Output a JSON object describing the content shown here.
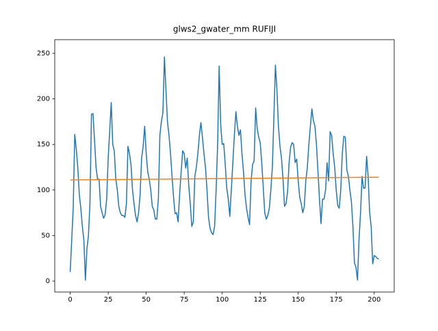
{
  "chart_data": {
    "type": "line",
    "title": "glws2_gwater_mm RUFIJI",
    "x": [
      0,
      1,
      2,
      3,
      4,
      5,
      6,
      7,
      8,
      9,
      10,
      11,
      12,
      13,
      14,
      15,
      16,
      17,
      18,
      19,
      20,
      21,
      22,
      23,
      24,
      25,
      26,
      27,
      28,
      29,
      30,
      31,
      32,
      33,
      34,
      35,
      36,
      37,
      38,
      39,
      40,
      41,
      42,
      43,
      44,
      45,
      46,
      47,
      48,
      49,
      50,
      51,
      52,
      53,
      54,
      55,
      56,
      57,
      58,
      59,
      60,
      61,
      62,
      63,
      64,
      65,
      66,
      67,
      68,
      69,
      70,
      71,
      72,
      73,
      74,
      75,
      76,
      77,
      78,
      79,
      80,
      81,
      82,
      83,
      84,
      85,
      86,
      87,
      88,
      89,
      90,
      91,
      92,
      93,
      94,
      95,
      96,
      97,
      98,
      99,
      100,
      101,
      102,
      103,
      104,
      105,
      106,
      107,
      108,
      109,
      110,
      111,
      112,
      113,
      114,
      115,
      116,
      117,
      118,
      119,
      120,
      121,
      122,
      123,
      124,
      125,
      126,
      127,
      128,
      129,
      130,
      131,
      132,
      133,
      134,
      135,
      136,
      137,
      138,
      139,
      140,
      141,
      142,
      143,
      144,
      145,
      146,
      147,
      148,
      149,
      150,
      151,
      152,
      153,
      154,
      155,
      156,
      157,
      158,
      159,
      160,
      161,
      162,
      163,
      164,
      165,
      166,
      167,
      168,
      169,
      170,
      171,
      172,
      173,
      174,
      175,
      176,
      177,
      178,
      179,
      180,
      181,
      182,
      183,
      184,
      185,
      186,
      187,
      188,
      189,
      190,
      191,
      192,
      193,
      194,
      195,
      196,
      197,
      198,
      199,
      200,
      201,
      202,
      203
    ],
    "series": [
      {
        "color": "#1f77b4",
        "values": [
          10,
          45,
          80,
          161,
          145,
          125,
          95,
          80,
          60,
          45,
          1,
          35,
          50,
          85,
          183,
          184,
          155,
          125,
          112,
          112,
          82,
          75,
          69,
          73,
          90,
          135,
          165,
          196,
          150,
          143,
          112,
          100,
          82,
          75,
          72,
          72,
          70,
          85,
          148,
          140,
          128,
          100,
          85,
          72,
          65,
          75,
          95,
          135,
          148,
          170,
          140,
          120,
          112,
          100,
          82,
          78,
          68,
          68,
          90,
          160,
          175,
          185,
          246,
          210,
          175,
          160,
          140,
          115,
          92,
          74,
          75,
          65,
          95,
          120,
          143,
          140,
          124,
          135,
          105,
          85,
          60,
          65,
          115,
          125,
          140,
          160,
          174,
          158,
          140,
          125,
          100,
          70,
          58,
          53,
          51,
          60,
          100,
          150,
          236,
          172,
          150,
          151,
          128,
          102,
          90,
          71,
          100,
          130,
          160,
          186,
          170,
          160,
          166,
          140,
          120,
          95,
          80,
          70,
          62,
          110,
          128,
          132,
          190,
          168,
          158,
          152,
          130,
          103,
          75,
          68,
          72,
          80,
          100,
          125,
          180,
          237,
          210,
          170,
          148,
          135,
          112,
          82,
          85,
          98,
          130,
          147,
          152,
          150,
          130,
          134,
          110,
          92,
          85,
          75,
          82,
          110,
          125,
          150,
          170,
          189,
          176,
          170,
          150,
          120,
          90,
          63,
          90,
          90,
          100,
          130,
          110,
          164,
          160,
          140,
          125,
          100,
          83,
          80,
          100,
          140,
          159,
          158,
          122,
          115,
          100,
          87,
          60,
          20,
          15,
          1,
          45,
          75,
          115,
          102,
          102,
          137,
          115,
          75,
          60,
          19,
          28,
          27,
          25,
          24
        ]
      },
      {
        "color": "#ff7f0e",
        "x": [
          0,
          203
        ],
        "values": [
          111,
          114
        ]
      }
    ],
    "xlim": [
      -10.15,
      213.15
    ],
    "xticks": [
      0,
      25,
      50,
      75,
      100,
      125,
      150,
      175,
      200
    ],
    "ylim": [
      -12,
      265
    ],
    "yticks": [
      0,
      50,
      100,
      150,
      200,
      250
    ]
  }
}
